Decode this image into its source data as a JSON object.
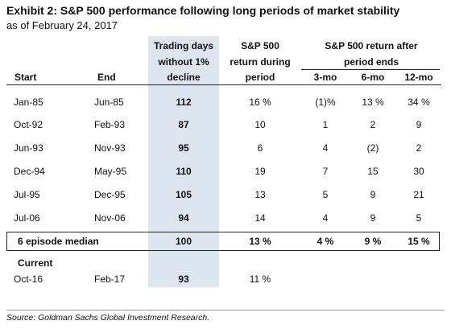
{
  "title": "Exhibit 2: S&P 500 performance following long periods of market stability",
  "subtitle": "as of February 24, 2017",
  "headers": {
    "start": "Start",
    "end": "End",
    "days_l1": "Trading days",
    "days_l2": "without 1%",
    "days_l3": "decline",
    "during_l1": "S&P 500",
    "during_l2": "return during",
    "during_l3": "period",
    "after_l1": "S&P 500 return after",
    "after_l2": "period ends",
    "m3": "3-mo",
    "m6": "6-mo",
    "m12": "12-mo"
  },
  "rows": [
    {
      "start": "Jan-85",
      "end": "Jun-85",
      "days": "112",
      "during": "16 %",
      "m3": "(1)%",
      "m6": "13 %",
      "m12": "34 %"
    },
    {
      "start": "Oct-92",
      "end": "Feb-93",
      "days": "87",
      "during": "10",
      "m3": "1",
      "m6": "2",
      "m12": "9"
    },
    {
      "start": "Jun-93",
      "end": "Nov-93",
      "days": "95",
      "during": "6",
      "m3": "4",
      "m6": "(2)",
      "m12": "2"
    },
    {
      "start": "Dec-94",
      "end": "May-95",
      "days": "110",
      "during": "19",
      "m3": "7",
      "m6": "15",
      "m12": "30"
    },
    {
      "start": "Jul-95",
      "end": "Dec-95",
      "days": "105",
      "during": "13",
      "m3": "5",
      "m6": "9",
      "m12": "21"
    },
    {
      "start": "Jul-06",
      "end": "Nov-06",
      "days": "94",
      "during": "14",
      "m3": "4",
      "m6": "9",
      "m12": "5"
    }
  ],
  "median": {
    "label": "6 episode median",
    "days": "100",
    "during": "13 %",
    "m3": "4 %",
    "m6": "9 %",
    "m12": "15 %"
  },
  "current": {
    "label": "Current",
    "start": "Oct-16",
    "end": "Feb-17",
    "days": "93",
    "during": "11 %"
  },
  "source": "Source: Goldman Sachs Global Investment Research."
}
